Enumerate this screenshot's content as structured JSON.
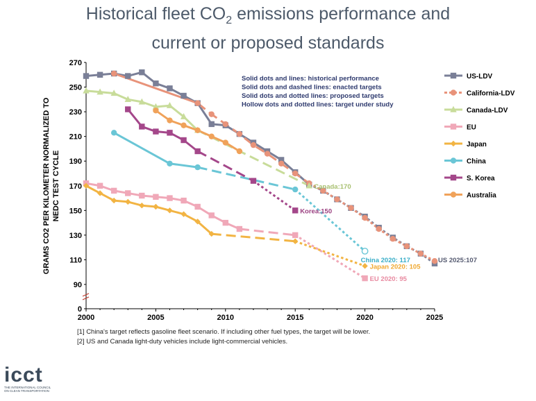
{
  "page": {
    "title_line1_pre": "Historical fleet CO",
    "title_line1_sub": "2",
    "title_line1_post": " emissions performance and",
    "title_line2": "current or proposed standards",
    "footnote1": "[1] China's target reflects gasoline fleet scenario. If including other fuel types, the target will be lower.",
    "footnote2": "[2] US and Canada light-duty vehicles include light-commercial vehicles.",
    "logo_text": "icct",
    "logo_sub": "THE INTERNATIONAL COUNCIL ON CLEAN TRANSPORTATION"
  },
  "chart_data": {
    "type": "line",
    "ylabel_line1": "GRAMS CO2 PER KILOMETER NORMALIZED TO",
    "ylabel_line2": "NEDC TEST CYCLE",
    "xlim": [
      2000,
      2025
    ],
    "ylim": [
      0,
      270
    ],
    "xticks": [
      2000,
      2005,
      2010,
      2015,
      2020,
      2025
    ],
    "yticks": [
      0,
      70,
      90,
      110,
      130,
      150,
      170,
      190,
      210,
      230,
      250,
      270
    ],
    "ytick_labels": [
      "0",
      "",
      "90",
      "110",
      "130",
      "150",
      "170",
      "190",
      "210",
      "230",
      "250",
      "270"
    ],
    "grid": false,
    "legend_position": "right",
    "notes": [
      "Solid dots and lines: historical performance",
      "Solid dots and dashed lines: enacted targets",
      "Solid dots and dotted lines: proposed targets",
      "Hollow dots and dotted lines: target under study"
    ],
    "series": [
      {
        "name": "US-LDV",
        "color": "#7a7f97",
        "marker": "square",
        "segments": [
          {
            "style": "solid",
            "x": [
              2000,
              2001,
              2002,
              2003,
              2004,
              2005,
              2006,
              2007,
              2008,
              2009,
              2010,
              2011,
              2012,
              2013,
              2014,
              2015,
              2016
            ],
            "y": [
              259,
              260,
              261,
              259,
              262,
              253,
              249,
              243,
              237,
              220,
              219,
              212,
              205,
              198,
              191,
              181,
              171
            ]
          },
          {
            "style": "dotted",
            "x": [
              2016,
              2017,
              2018,
              2019,
              2020,
              2021,
              2022,
              2023,
              2024,
              2025
            ],
            "y": [
              171,
              166,
              159,
              152,
              145,
              136,
              128,
              121,
              115,
              107
            ]
          }
        ],
        "end_label": "US 2025:107",
        "end_label_color": "#555a70"
      },
      {
        "name": "California-LDV",
        "color": "#e8937a",
        "marker": "circle",
        "segments": [
          {
            "style": "solid",
            "x": [
              2002,
              2008
            ],
            "y": [
              261,
              237
            ]
          },
          {
            "style": "dashed",
            "x": [
              2008,
              2009,
              2010,
              2011,
              2012,
              2013,
              2014,
              2015,
              2016
            ],
            "y": [
              237,
              228,
              220,
              212,
              203,
              196,
              188,
              180,
              172
            ]
          },
          {
            "style": "dotted",
            "x": [
              2016,
              2017,
              2018,
              2019,
              2020,
              2021,
              2022,
              2023,
              2024,
              2025
            ],
            "y": [
              172,
              166,
              159,
              152,
              144,
              135,
              127,
              121,
              115,
              109
            ]
          }
        ]
      },
      {
        "name": "Canada-LDV",
        "color": "#c8dc9a",
        "marker": "triangle",
        "segments": [
          {
            "style": "solid",
            "x": [
              2000,
              2001,
              2002,
              2003,
              2004,
              2005,
              2006,
              2007,
              2008
            ],
            "y": [
              247,
              246,
              245,
              240,
              238,
              234,
              235,
              226,
              215
            ]
          },
          {
            "style": "dashed",
            "x": [
              2008,
              2016
            ],
            "y": [
              215,
              170
            ]
          }
        ],
        "end_label": "Canada:170",
        "end_label_color": "#a8c070"
      },
      {
        "name": "EU",
        "color": "#f0a8b8",
        "marker": "square",
        "segments": [
          {
            "style": "solid",
            "x": [
              2000,
              2001,
              2002,
              2003,
              2004,
              2005,
              2006,
              2007,
              2008,
              2009,
              2010,
              2011
            ],
            "y": [
              172,
              170,
              166,
              164,
              162,
              161,
              160,
              158,
              153,
              146,
              140,
              135
            ]
          },
          {
            "style": "dashed",
            "x": [
              2011,
              2015
            ],
            "y": [
              135,
              130
            ]
          },
          {
            "style": "dotted",
            "x": [
              2015,
              2020
            ],
            "y": [
              130,
              95
            ]
          }
        ],
        "end_label": "EU 2020: 95",
        "end_label_color": "#e88aa0"
      },
      {
        "name": "Japan",
        "color": "#f2b443",
        "marker": "diamond",
        "segments": [
          {
            "style": "solid",
            "x": [
              2000,
              2001,
              2002,
              2003,
              2004,
              2005,
              2006,
              2007,
              2008,
              2009
            ],
            "y": [
              170,
              164,
              158,
              157,
              154,
              153,
              150,
              147,
              141,
              131
            ]
          },
          {
            "style": "dashed",
            "x": [
              2009,
              2015
            ],
            "y": [
              131,
              125
            ]
          },
          {
            "style": "dotted",
            "x": [
              2015,
              2020
            ],
            "y": [
              125,
              105
            ]
          }
        ],
        "end_label": "Japan 2020: 105",
        "end_label_color": "#f0a830"
      },
      {
        "name": "China",
        "color": "#6ac6d6",
        "marker": "circle",
        "segments": [
          {
            "style": "solid",
            "x": [
              2002,
              2006,
              2008
            ],
            "y": [
              213,
              188,
              185
            ]
          },
          {
            "style": "dashed",
            "x": [
              2008,
              2015
            ],
            "y": [
              185,
              167
            ]
          },
          {
            "style": "dotted",
            "x": [
              2015,
              2020
            ],
            "y": [
              167,
              117
            ]
          }
        ],
        "hollow_x": [
          2020
        ],
        "end_label": "China 2020: 117",
        "end_label_color": "#3aaec8"
      },
      {
        "name": "S. Korea",
        "color": "#a4478a",
        "marker": "square",
        "segments": [
          {
            "style": "solid",
            "x": [
              2003,
              2004,
              2005,
              2006,
              2007,
              2008
            ],
            "y": [
              232,
              218,
              214,
              213,
              207,
              198
            ]
          },
          {
            "style": "dashed",
            "x": [
              2008,
              2012
            ],
            "y": [
              198,
              174
            ]
          },
          {
            "style": "dotted",
            "x": [
              2012,
              2015
            ],
            "y": [
              174,
              150
            ]
          }
        ],
        "end_label": "Korea:150",
        "end_label_color": "#9a3f80"
      },
      {
        "name": "Australia",
        "color": "#f0a25a",
        "marker": "circle",
        "segments": [
          {
            "style": "solid",
            "x": [
              2005,
              2006,
              2007,
              2008,
              2009,
              2010,
              2011
            ],
            "y": [
              231,
              223,
              219,
              215,
              210,
              205,
              198
            ]
          }
        ]
      }
    ]
  }
}
